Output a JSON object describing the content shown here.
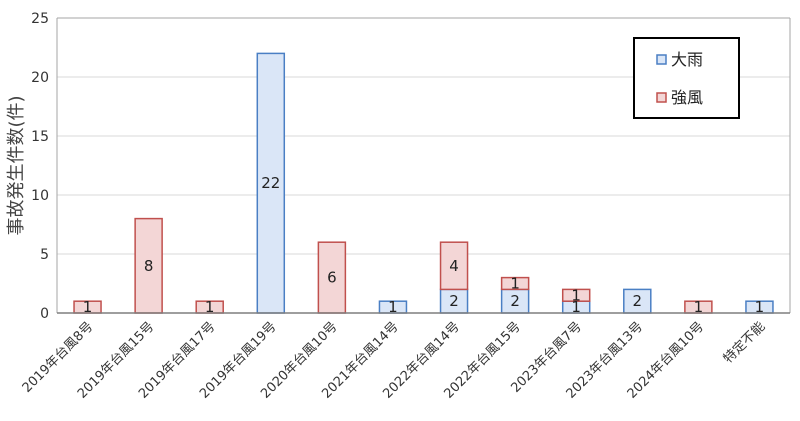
{
  "chart_data": {
    "type": "bar",
    "stacked": true,
    "title": "",
    "xlabel": "",
    "ylabel": "事故発生件数(件)",
    "ylim": [
      0,
      25
    ],
    "yticks": [
      0,
      5,
      10,
      15,
      20,
      25
    ],
    "grid": true,
    "legend_position": "top-right",
    "categories": [
      "2019年台風8号",
      "2019年台風15号",
      "2019年台風17号",
      "2019年台風19号",
      "2020年台風10号",
      "2021年台風14号",
      "2022年台風14号",
      "2022年台風15号",
      "2023年台風7号",
      "2023年台風13号",
      "2024年台風10号",
      "特定不能"
    ],
    "series": [
      {
        "name": "大雨",
        "fill": "#dae6f7",
        "stroke": "#4a7fc4",
        "values": [
          0,
          0,
          0,
          22,
          0,
          1,
          2,
          2,
          1,
          2,
          0,
          1
        ]
      },
      {
        "name": "強風",
        "fill": "#f3d6d6",
        "stroke": "#c0504d",
        "values": [
          1,
          8,
          1,
          0,
          6,
          0,
          4,
          1,
          1,
          0,
          1,
          0
        ]
      }
    ]
  }
}
